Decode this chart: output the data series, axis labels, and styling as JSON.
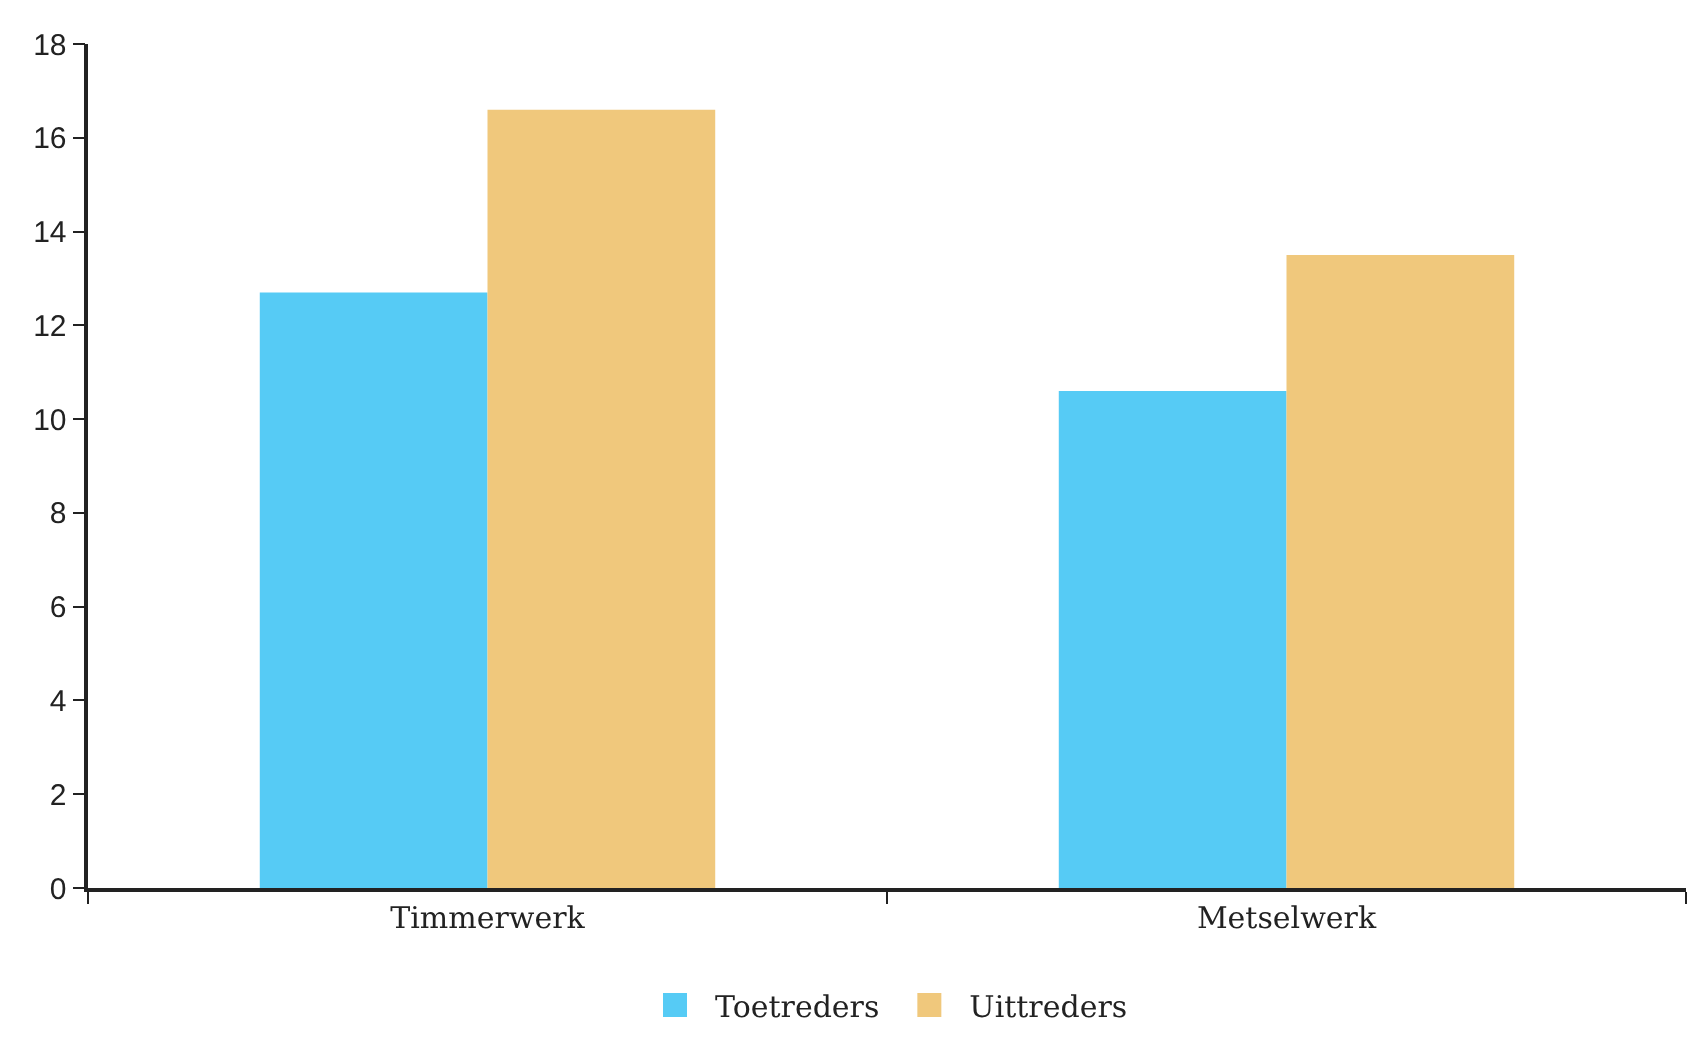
{
  "chart_data": {
    "type": "bar",
    "categories": [
      "Timmerwerk",
      "Metselwerk"
    ],
    "series": [
      {
        "name": "Toetreders",
        "color": "#56cbf5",
        "values": [
          12.7,
          10.6
        ]
      },
      {
        "name": "Uittreders",
        "color": "#f0c87c",
        "values": [
          16.6,
          13.5
        ]
      }
    ],
    "ylim": [
      0,
      18
    ],
    "yticks": [
      0,
      2,
      4,
      6,
      8,
      10,
      12,
      14,
      16,
      18
    ],
    "grid": false,
    "legend": "bottom"
  }
}
